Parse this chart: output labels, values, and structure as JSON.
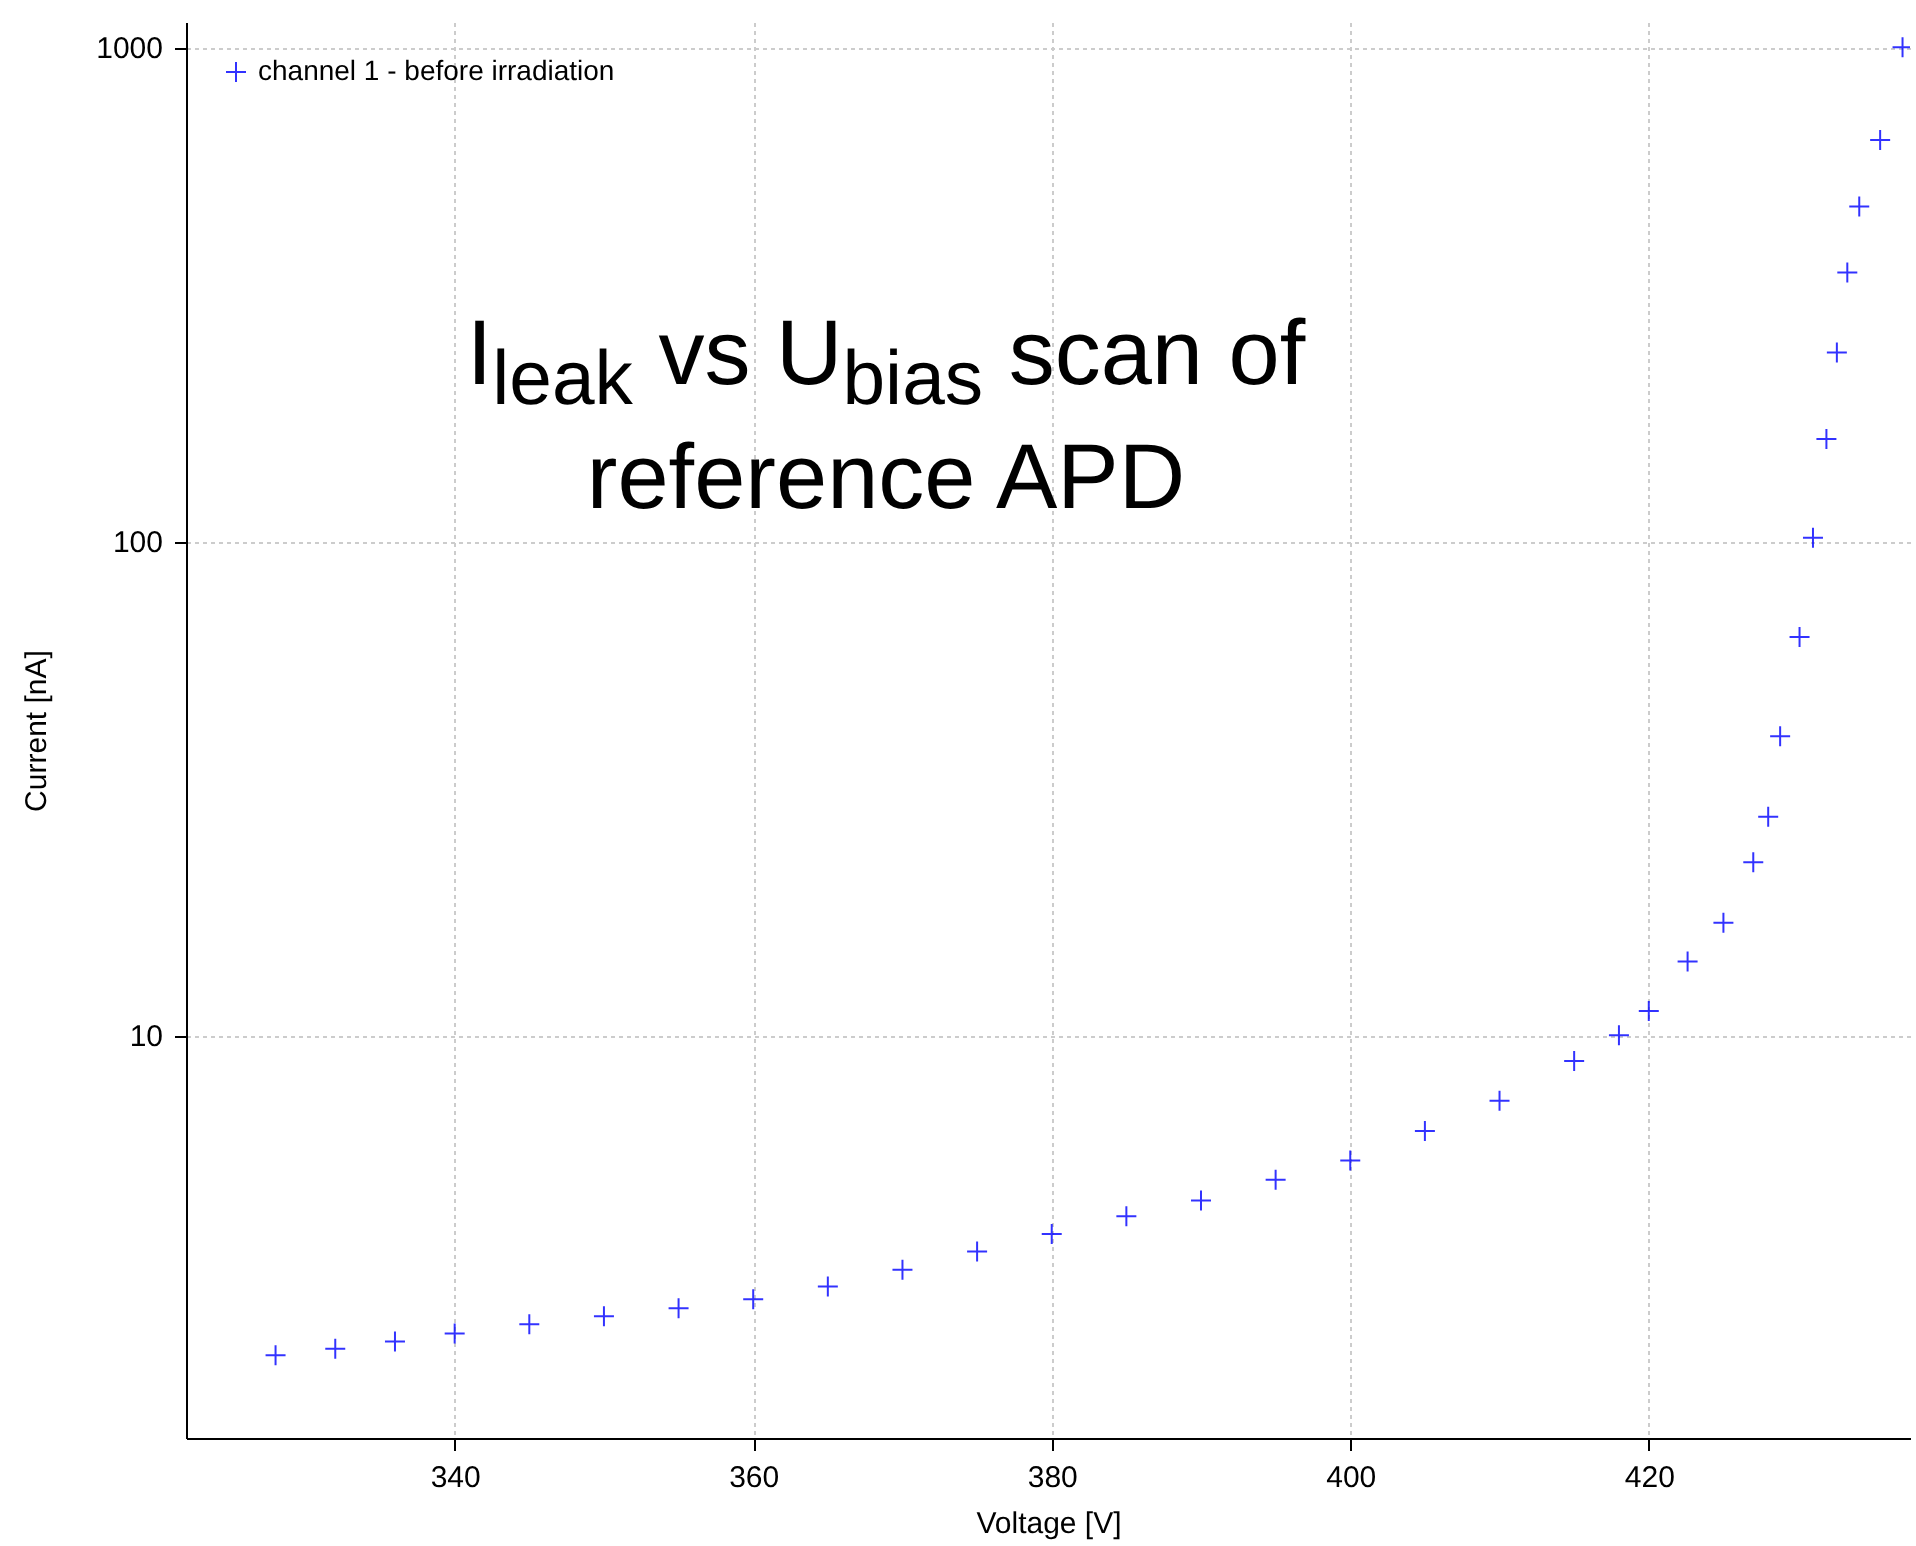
{
  "chart_data": {
    "type": "scatter",
    "title": "I$_{leak}$ vs U$_{bias}$ scan of reference APD",
    "xlabel": "Voltage [V]",
    "ylabel": "Current [nA]",
    "xlim": [
      322,
      437.5
    ],
    "ylim": [
      1.53,
      1125
    ],
    "xticks": [
      340,
      360,
      380,
      400,
      420
    ],
    "yticks": [
      10,
      100,
      1000
    ],
    "log": "y",
    "grid": true,
    "legend": "top left",
    "marker": "cross",
    "series": [
      {
        "name": "channel 1 - before irradiation",
        "color": "#0000ff",
        "x": [
          328,
          332,
          336,
          340,
          345,
          350,
          355,
          360,
          365,
          370,
          375,
          380,
          385,
          390,
          395,
          400,
          405,
          410,
          415,
          418,
          420,
          422.6,
          425,
          427,
          428,
          428.8,
          430.1,
          431,
          431.9,
          432.6,
          433.3,
          434.1,
          435.5,
          437
        ],
        "values": [
          2.25,
          2.32,
          2.4,
          2.49,
          2.6,
          2.7,
          2.8,
          2.92,
          3.1,
          3.35,
          3.65,
          3.96,
          4.3,
          4.63,
          5.1,
          5.58,
          6.4,
          7.37,
          8.87,
          10,
          11.2,
          14.1,
          16.9,
          22.4,
          27.7,
          40.3,
          64,
          101.6,
          161,
          241,
          350,
          476,
          649,
          1000
        ]
      }
    ]
  }
}
